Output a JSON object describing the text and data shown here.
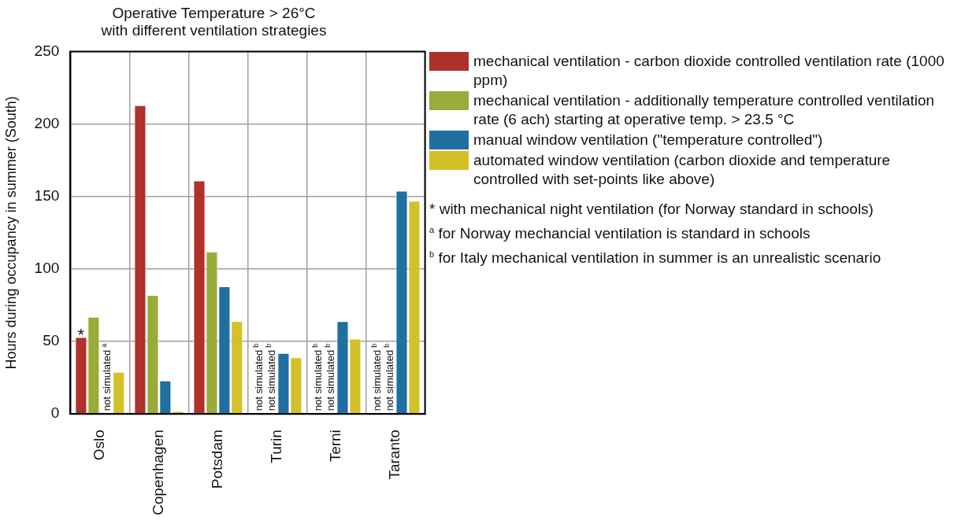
{
  "chart_data": {
    "type": "bar",
    "title": "Operative Temperature > 26°C\nwith different ventilation strategies",
    "ylabel": "Hours during occupancy in summer (South)",
    "categories": [
      "Oslo",
      "Copenhagen",
      "Potsdam",
      "Turin",
      "Terni",
      "Taranto"
    ],
    "series": [
      {
        "name": "mechanical ventilation - carbon dioxide controlled ventilation rate (1000 ppm)",
        "color": "#b0302a",
        "values": [
          53,
          213,
          161,
          null,
          null,
          null
        ]
      },
      {
        "name": "mechanical ventilation - additionally temperature controlled ventilation rate (6 ach) starting at operative temp. > 23.5 °C",
        "color": "#9aab3a",
        "values": [
          67,
          82,
          112,
          null,
          null,
          null
        ]
      },
      {
        "name": "manual window ventilation (\"temperature controlled\")",
        "color": "#1f6fa0",
        "values": [
          null,
          23,
          88,
          42,
          64,
          154
        ]
      },
      {
        "name": "automated window ventilation (carbon dioxide and temperature controlled with set-points like above)",
        "color": "#d4c12a",
        "values": [
          29,
          2,
          64,
          39,
          52,
          147
        ]
      }
    ],
    "ylim": [
      0,
      250
    ],
    "yticks": [
      0,
      50,
      100,
      150,
      200,
      250
    ],
    "grid": true,
    "legend": "right",
    "annotations": [
      {
        "text": "*",
        "x": "Oslo",
        "y": 53
      },
      {
        "text": "not simulated$^{a}$",
        "x": "Oslo"
      },
      {
        "text": "not simulated$^{b}$",
        "x": "Turin"
      },
      {
        "text": "not simulated$^{b}$",
        "x": "Turin"
      },
      {
        "text": "not simulated$^{b}$",
        "x": "Terni"
      },
      {
        "text": "not simulated$^{b}$",
        "x": "Terni"
      },
      {
        "text": "not simulated$^{b}$",
        "x": "Taranto"
      },
      {
        "text": "not simulated$^{b}$",
        "x": "Taranto"
      },
      "* with mechanical night ventilation (for Norway standard in schools)",
      "$^{a}$ for Norway mechancial ventilation is standard in schools",
      "$^{b}$ for Italy mechanical ventilation in summer is an unrealistic scenario"
    ]
  }
}
